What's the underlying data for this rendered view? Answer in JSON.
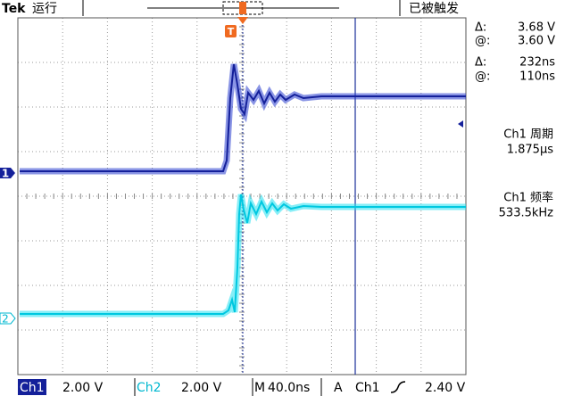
{
  "header": {
    "brand": "Tek",
    "status": "运行",
    "trigger_state": "已被触发"
  },
  "cursors": [
    {
      "delta_label": "Δ:",
      "delta": "3.68 V",
      "at_label": "@:",
      "at": "3.60 V"
    },
    {
      "delta_label": "Δ:",
      "delta": "232ns",
      "at_label": "@:",
      "at": "110ns"
    }
  ],
  "measurements": [
    {
      "label": "Ch1 周期",
      "value": "1.875µs"
    },
    {
      "label": "Ch1 频率",
      "value": "533.5kHz"
    }
  ],
  "markers": {
    "ch1": "1",
    "ch2": "2",
    "trigger": "T"
  },
  "footer": {
    "ch1_label": "Ch1",
    "ch1_scale": "2.00 V",
    "ch2_label": "Ch2",
    "ch2_scale": "2.00 V",
    "timebase_label": "M",
    "timebase": "40.0ns",
    "trigger_label": "A",
    "trigger_source": "Ch1",
    "trigger_level": "2.40 V"
  }
}
